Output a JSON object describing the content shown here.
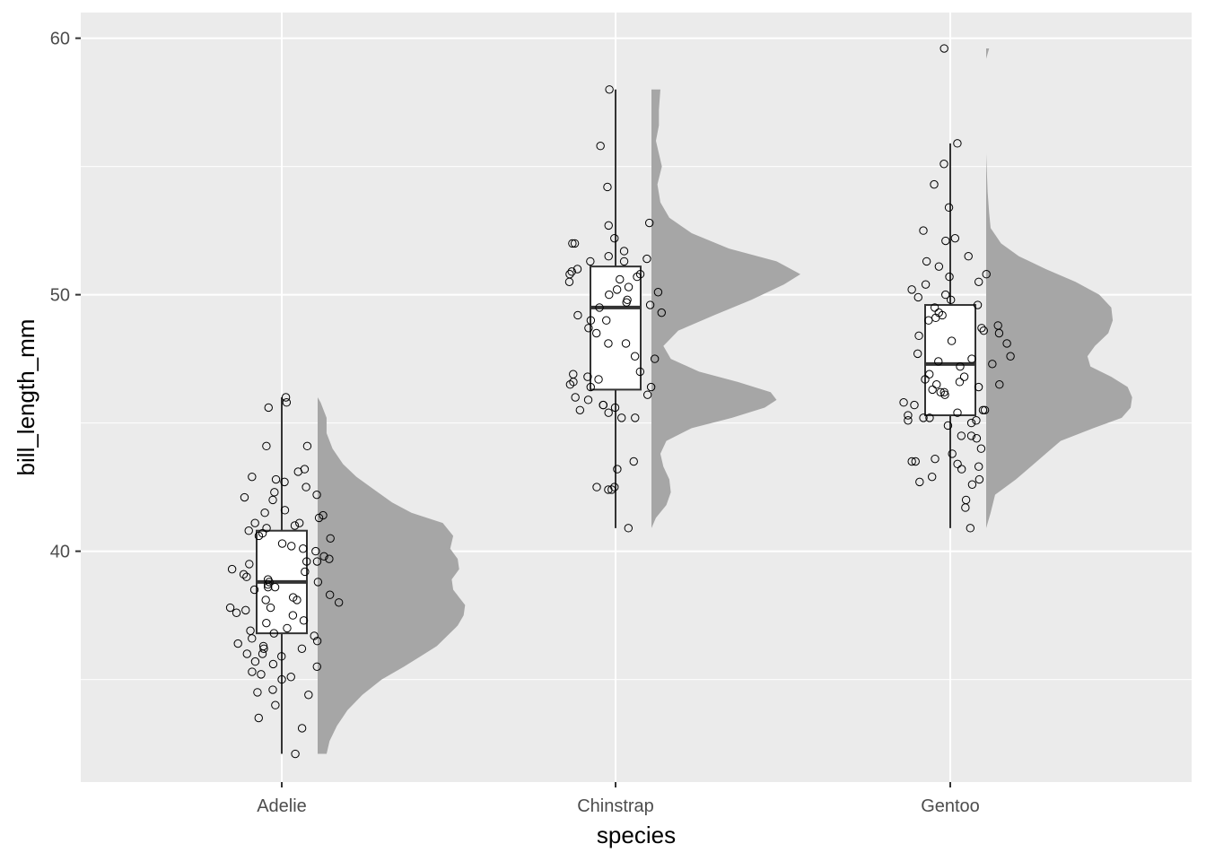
{
  "chart_data": {
    "type": "raincloud",
    "title": "",
    "xlabel": "species",
    "ylabel": "bill_length_mm",
    "ylim": [
      31.0,
      61.0
    ],
    "y_ticks": [
      40,
      50,
      60
    ],
    "y_minor": [
      35,
      45,
      55
    ],
    "grid": true,
    "legend": "none",
    "colors": {
      "panel": "#ebebeb",
      "grid": "#ffffff",
      "density": "#a6a6a6",
      "box_border": "#333333",
      "point": "#000000"
    },
    "categories": [
      "Adelie",
      "Chinstrap",
      "Gentoo"
    ],
    "groups": [
      {
        "name": "Adelie",
        "box": {
          "whisker_low": 32.1,
          "q1": 36.8,
          "median": 38.8,
          "q3": 40.8,
          "whisker_high": 46.0
        },
        "points": [
          32.1,
          33.1,
          33.5,
          34.0,
          34.4,
          34.5,
          34.6,
          35.0,
          35.1,
          35.2,
          35.3,
          35.5,
          35.6,
          35.7,
          35.9,
          36.0,
          36.0,
          36.2,
          36.2,
          36.3,
          36.4,
          36.5,
          36.6,
          36.7,
          36.8,
          36.9,
          37.0,
          37.2,
          37.3,
          37.5,
          37.6,
          37.7,
          37.8,
          37.8,
          38.0,
          38.1,
          38.1,
          38.2,
          38.3,
          38.5,
          38.6,
          38.6,
          38.7,
          38.8,
          38.8,
          38.9,
          39.0,
          39.1,
          39.2,
          39.3,
          39.5,
          39.6,
          39.6,
          39.7,
          39.8,
          40.0,
          40.1,
          40.2,
          40.3,
          40.5,
          40.6,
          40.7,
          40.8,
          40.9,
          41.0,
          41.1,
          41.1,
          41.3,
          41.4,
          41.5,
          41.6,
          42.0,
          42.1,
          42.2,
          42.3,
          42.5,
          42.7,
          42.8,
          42.9,
          43.1,
          43.2,
          44.1,
          44.1,
          45.6,
          45.8,
          46.0
        ],
        "density": [
          [
            32.1,
            0.06
          ],
          [
            32.6,
            0.08
          ],
          [
            33.2,
            0.13
          ],
          [
            33.8,
            0.2
          ],
          [
            34.4,
            0.3
          ],
          [
            35.0,
            0.43
          ],
          [
            35.5,
            0.58
          ],
          [
            35.9,
            0.69
          ],
          [
            36.3,
            0.8
          ],
          [
            36.7,
            0.87
          ],
          [
            37.1,
            0.94
          ],
          [
            37.5,
            0.98
          ],
          [
            37.9,
            0.99
          ],
          [
            38.2,
            0.95
          ],
          [
            38.5,
            0.91
          ],
          [
            38.9,
            0.9
          ],
          [
            39.3,
            0.95
          ],
          [
            39.7,
            0.94
          ],
          [
            40.1,
            0.89
          ],
          [
            40.6,
            0.91
          ],
          [
            41.1,
            0.84
          ],
          [
            41.5,
            0.63
          ],
          [
            41.9,
            0.5
          ],
          [
            42.4,
            0.38
          ],
          [
            42.9,
            0.26
          ],
          [
            43.4,
            0.17
          ],
          [
            44.0,
            0.1
          ],
          [
            44.6,
            0.06
          ],
          [
            45.2,
            0.06
          ],
          [
            45.8,
            0.02
          ],
          [
            46.0,
            0.0
          ]
        ]
      },
      {
        "name": "Chinstrap",
        "box": {
          "whisker_low": 40.9,
          "q1": 46.3,
          "median": 49.5,
          "q3": 51.1,
          "whisker_high": 58.0
        },
        "points": [
          40.9,
          42.4,
          42.4,
          42.5,
          42.5,
          43.2,
          43.5,
          45.2,
          45.2,
          45.4,
          45.5,
          45.6,
          45.7,
          45.7,
          45.9,
          46.0,
          46.1,
          46.4,
          46.4,
          46.5,
          46.6,
          46.7,
          46.8,
          46.9,
          47.0,
          47.5,
          47.6,
          48.1,
          48.1,
          48.5,
          48.7,
          49.0,
          49.0,
          49.2,
          49.3,
          49.5,
          49.6,
          49.7,
          49.8,
          50.0,
          50.1,
          50.2,
          50.3,
          50.5,
          50.6,
          50.7,
          50.8,
          50.8,
          50.9,
          51.0,
          51.3,
          51.3,
          51.4,
          51.5,
          51.7,
          52.0,
          52.0,
          52.2,
          52.7,
          52.8,
          54.2,
          55.8,
          58.0
        ],
        "density": [
          [
            40.9,
            0.0
          ],
          [
            41.3,
            0.03
          ],
          [
            41.8,
            0.1
          ],
          [
            42.3,
            0.13
          ],
          [
            42.8,
            0.12
          ],
          [
            43.3,
            0.08
          ],
          [
            43.8,
            0.06
          ],
          [
            44.3,
            0.1
          ],
          [
            44.8,
            0.27
          ],
          [
            45.2,
            0.54
          ],
          [
            45.6,
            0.76
          ],
          [
            45.9,
            0.84
          ],
          [
            46.2,
            0.8
          ],
          [
            46.6,
            0.58
          ],
          [
            47.0,
            0.32
          ],
          [
            47.5,
            0.13
          ],
          [
            48.0,
            0.08
          ],
          [
            48.6,
            0.18
          ],
          [
            49.2,
            0.42
          ],
          [
            49.8,
            0.67
          ],
          [
            50.4,
            0.89
          ],
          [
            50.8,
            1.0
          ],
          [
            51.3,
            0.84
          ],
          [
            51.8,
            0.52
          ],
          [
            52.4,
            0.27
          ],
          [
            53.0,
            0.12
          ],
          [
            53.6,
            0.06
          ],
          [
            54.3,
            0.04
          ],
          [
            55.0,
            0.07
          ],
          [
            55.5,
            0.05
          ],
          [
            56.0,
            0.03
          ],
          [
            56.6,
            0.05
          ],
          [
            57.2,
            0.05
          ],
          [
            58.0,
            0.06
          ]
        ]
      },
      {
        "name": "Gentoo",
        "box": {
          "whisker_low": 40.9,
          "q1": 45.3,
          "median": 47.3,
          "q3": 49.6,
          "whisker_high": 55.9
        },
        "points": [
          40.9,
          41.7,
          42.0,
          42.6,
          42.7,
          42.8,
          42.9,
          43.2,
          43.3,
          43.4,
          43.5,
          43.5,
          43.6,
          43.8,
          44.0,
          44.4,
          44.5,
          44.5,
          44.9,
          45.0,
          45.1,
          45.1,
          45.2,
          45.2,
          45.3,
          45.4,
          45.5,
          45.5,
          45.7,
          45.8,
          46.1,
          46.2,
          46.2,
          46.3,
          46.4,
          46.5,
          46.5,
          46.6,
          46.7,
          46.8,
          46.9,
          47.2,
          47.3,
          47.4,
          47.5,
          47.6,
          47.7,
          48.1,
          48.2,
          48.4,
          48.5,
          48.6,
          48.7,
          48.8,
          49.0,
          49.1,
          49.2,
          49.3,
          49.5,
          49.6,
          49.8,
          49.9,
          50.0,
          50.2,
          50.4,
          50.5,
          50.7,
          50.8,
          51.1,
          51.3,
          51.5,
          52.1,
          52.2,
          52.5,
          53.4,
          54.3,
          55.1,
          55.9,
          59.6
        ],
        "density": [
          [
            40.9,
            0.0
          ],
          [
            41.5,
            0.03
          ],
          [
            42.2,
            0.06
          ],
          [
            42.8,
            0.2
          ],
          [
            43.3,
            0.3
          ],
          [
            43.8,
            0.4
          ],
          [
            44.3,
            0.5
          ],
          [
            44.8,
            0.72
          ],
          [
            45.2,
            0.91
          ],
          [
            45.6,
            0.97
          ],
          [
            46.0,
            0.98
          ],
          [
            46.4,
            0.95
          ],
          [
            46.8,
            0.84
          ],
          [
            47.2,
            0.7
          ],
          [
            47.6,
            0.68
          ],
          [
            48.0,
            0.73
          ],
          [
            48.5,
            0.82
          ],
          [
            49.0,
            0.85
          ],
          [
            49.5,
            0.84
          ],
          [
            50.0,
            0.76
          ],
          [
            50.5,
            0.6
          ],
          [
            51.0,
            0.4
          ],
          [
            51.5,
            0.22
          ],
          [
            52.0,
            0.1
          ],
          [
            52.6,
            0.03
          ],
          [
            53.2,
            0.02
          ],
          [
            54.0,
            0.01
          ],
          [
            55.5,
            0.0
          ],
          [
            57.0,
            0.0
          ],
          [
            58.5,
            0.0
          ],
          [
            59.2,
            0.0
          ],
          [
            59.6,
            0.02
          ]
        ]
      }
    ]
  }
}
